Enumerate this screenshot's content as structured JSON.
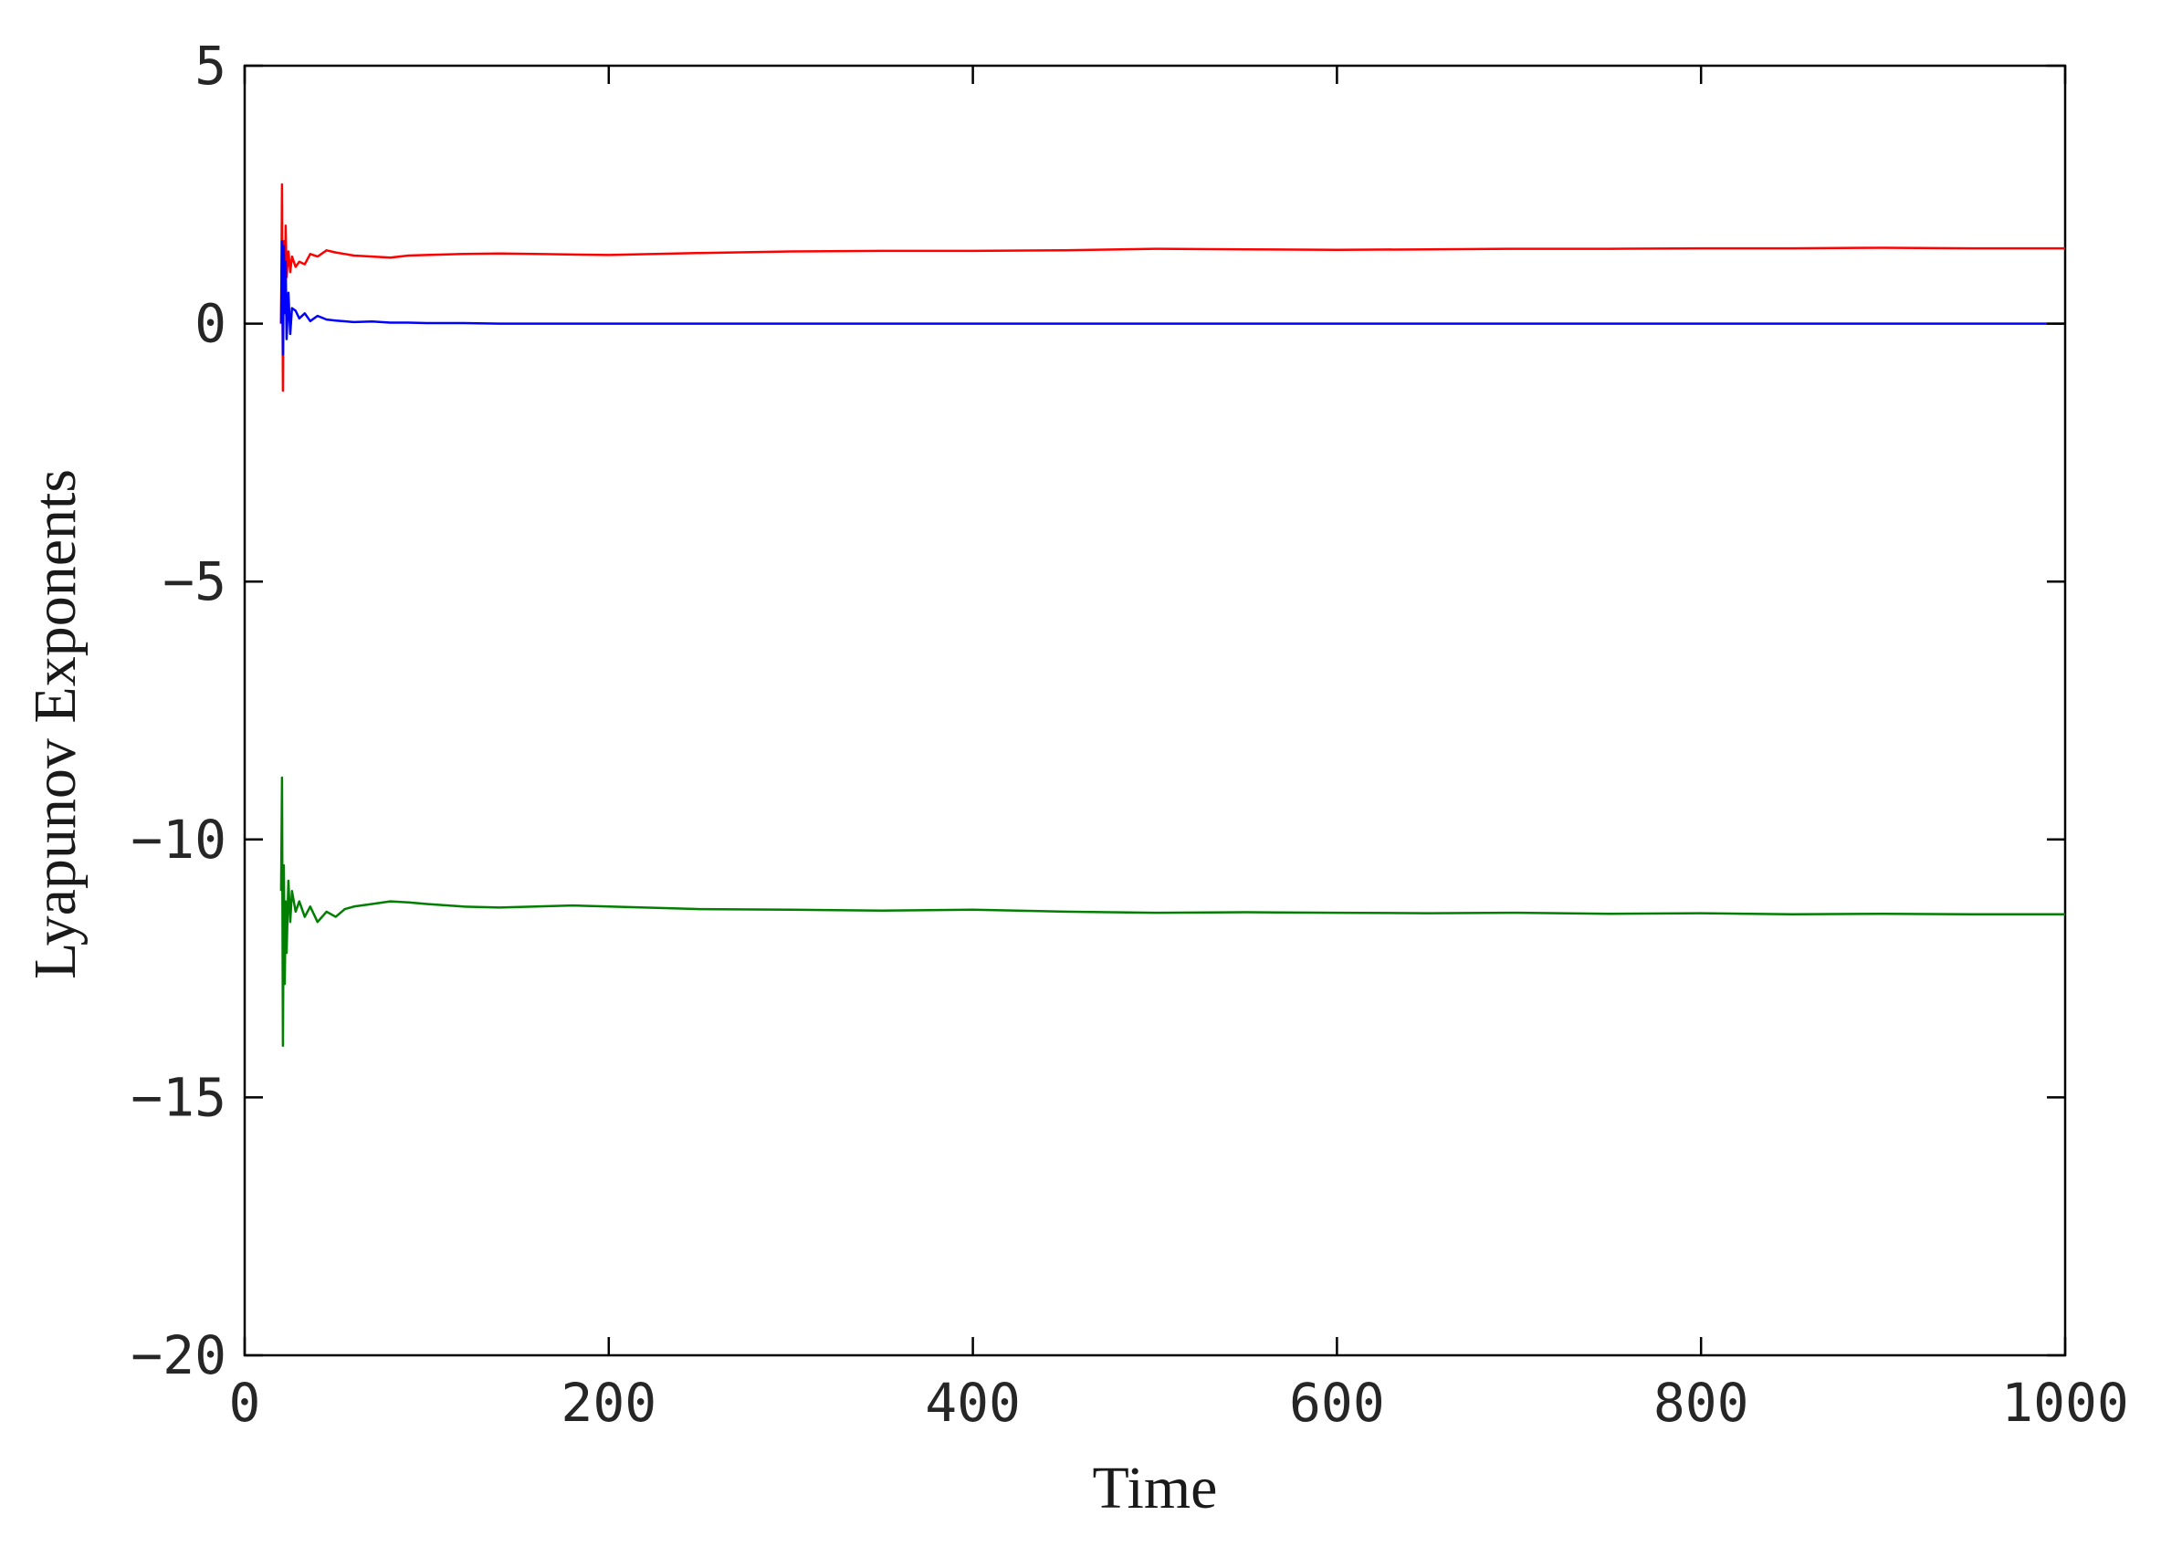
{
  "chart_data": {
    "type": "line",
    "title": "",
    "xlabel": "Time",
    "ylabel": "Lyapunov Exponents",
    "xlim": [
      0,
      1000
    ],
    "ylim": [
      -20,
      5
    ],
    "xticks": [
      0,
      200,
      400,
      600,
      800,
      1000
    ],
    "yticks": [
      5,
      0,
      -5,
      -10,
      -15,
      -20
    ],
    "xtick_labels": [
      "0",
      "200",
      "400",
      "600",
      "800",
      "1000"
    ],
    "ytick_labels": [
      "5",
      "0",
      "−5",
      "−10",
      "−15",
      "−20"
    ],
    "grid": false,
    "legend": "none",
    "series": [
      {
        "color": "#ff0000",
        "x": [
          20,
          20.5,
          21,
          21.5,
          22,
          22.5,
          23,
          24,
          25,
          26,
          28,
          30,
          33,
          36,
          40,
          45,
          50,
          55,
          60,
          70,
          80,
          90,
          100,
          120,
          140,
          160,
          180,
          200,
          250,
          300,
          350,
          400,
          450,
          500,
          550,
          600,
          650,
          700,
          750,
          800,
          850,
          900,
          950,
          1000
        ],
        "y": [
          0.0,
          2.7,
          -1.3,
          1.6,
          0.4,
          1.9,
          0.9,
          1.4,
          1.0,
          1.3,
          1.1,
          1.2,
          1.15,
          1.35,
          1.3,
          1.42,
          1.38,
          1.35,
          1.32,
          1.3,
          1.28,
          1.32,
          1.33,
          1.35,
          1.36,
          1.35,
          1.34,
          1.33,
          1.37,
          1.4,
          1.41,
          1.41,
          1.42,
          1.45,
          1.44,
          1.43,
          1.44,
          1.45,
          1.45,
          1.46,
          1.46,
          1.47,
          1.46,
          1.46
        ]
      },
      {
        "color": "#0000ff",
        "x": [
          20,
          20.5,
          21,
          21.5,
          22,
          22.5,
          23,
          24,
          25,
          26,
          28,
          30,
          33,
          36,
          40,
          45,
          50,
          60,
          70,
          80,
          90,
          100,
          120,
          140,
          160,
          200,
          300,
          400,
          500,
          600,
          700,
          800,
          900,
          1000
        ],
        "y": [
          0.0,
          1.6,
          -0.6,
          1.5,
          0.2,
          1.2,
          -0.3,
          0.6,
          -0.2,
          0.3,
          0.25,
          0.1,
          0.2,
          0.05,
          0.15,
          0.08,
          0.06,
          0.03,
          0.04,
          0.02,
          0.02,
          0.01,
          0.01,
          0.0,
          0.0,
          0.0,
          0.0,
          0.0,
          0.0,
          0.0,
          0.0,
          0.0,
          0.0,
          0.0
        ]
      },
      {
        "color": "#007f00",
        "x": [
          20,
          20.5,
          21,
          21.5,
          22,
          22.5,
          23,
          24,
          25,
          26,
          28,
          30,
          33,
          36,
          40,
          45,
          50,
          55,
          60,
          70,
          80,
          90,
          100,
          120,
          140,
          160,
          180,
          200,
          250,
          300,
          350,
          400,
          450,
          500,
          550,
          600,
          650,
          700,
          750,
          800,
          850,
          900,
          950,
          1000
        ],
        "y": [
          -11.0,
          -8.8,
          -14.0,
          -10.5,
          -12.8,
          -11.2,
          -12.2,
          -10.8,
          -11.6,
          -11.0,
          -11.4,
          -11.2,
          -11.5,
          -11.3,
          -11.6,
          -11.4,
          -11.5,
          -11.35,
          -11.3,
          -11.25,
          -11.2,
          -11.22,
          -11.25,
          -11.3,
          -11.32,
          -11.3,
          -11.28,
          -11.3,
          -11.35,
          -11.36,
          -11.38,
          -11.36,
          -11.4,
          -11.42,
          -11.41,
          -11.42,
          -11.43,
          -11.42,
          -11.44,
          -11.43,
          -11.45,
          -11.44,
          -11.45,
          -11.45
        ]
      }
    ]
  }
}
